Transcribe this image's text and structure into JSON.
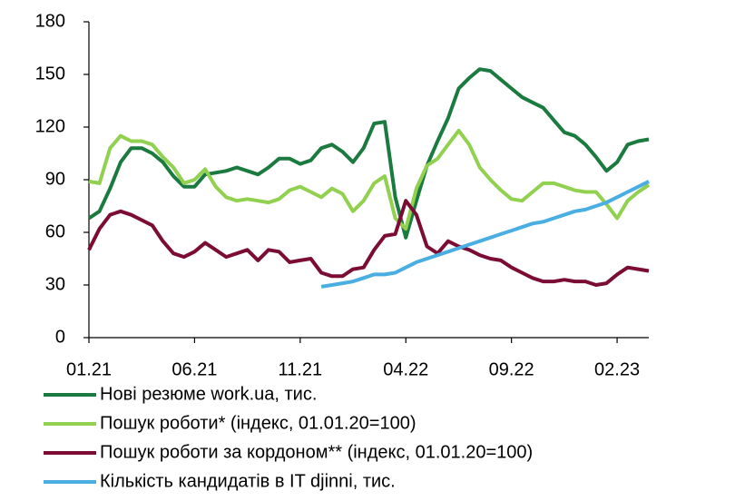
{
  "chart_data": {
    "type": "line",
    "categories": [
      "01.21",
      null,
      null,
      null,
      null,
      null,
      null,
      null,
      null,
      null,
      "06.21",
      null,
      null,
      null,
      null,
      null,
      null,
      null,
      null,
      null,
      "11.21",
      null,
      null,
      null,
      null,
      null,
      null,
      null,
      null,
      null,
      "04.22",
      null,
      null,
      null,
      null,
      null,
      null,
      null,
      null,
      null,
      "09.22",
      null,
      null,
      null,
      null,
      null,
      null,
      null,
      null,
      null,
      "02.23",
      null,
      null,
      null
    ],
    "series": [
      {
        "name": "Нові резюме work.ua, тис.",
        "color": "#1b7a3f",
        "values": [
          68,
          72,
          85,
          100,
          108,
          108,
          105,
          100,
          92,
          86,
          86,
          93,
          94,
          95,
          97,
          95,
          93,
          97,
          102,
          102,
          99,
          101,
          108,
          110,
          106,
          100,
          108,
          122,
          123,
          80,
          57,
          78,
          98,
          112,
          125,
          142,
          148,
          153,
          152,
          147,
          142,
          137,
          134,
          131,
          124,
          117,
          115,
          110,
          103,
          95,
          100,
          110,
          112,
          113
        ]
      },
      {
        "name": "Пошук роботи* (індекс, 01.01.20=100)",
        "color": "#92d050",
        "values": [
          89,
          88,
          108,
          115,
          112,
          112,
          110,
          103,
          97,
          88,
          90,
          96,
          86,
          80,
          78,
          79,
          78,
          77,
          79,
          84,
          86,
          83,
          80,
          85,
          82,
          72,
          78,
          88,
          92,
          68,
          62,
          85,
          98,
          102,
          110,
          118,
          110,
          97,
          90,
          84,
          79,
          78,
          83,
          88,
          88,
          86,
          84,
          83,
          83,
          76,
          68,
          78,
          83,
          87
        ]
      },
      {
        "name": "Пошук роботи за кордоном** (індекс, 01.01.20=100)",
        "color": "#7b0c34",
        "values": [
          50,
          62,
          70,
          72,
          70,
          67,
          64,
          55,
          48,
          46,
          49,
          54,
          50,
          46,
          48,
          50,
          44,
          50,
          49,
          43,
          44,
          45,
          37,
          35,
          35,
          39,
          40,
          50,
          58,
          59,
          78,
          70,
          52,
          48,
          55,
          52,
          50,
          47,
          45,
          44,
          40,
          37,
          34,
          32,
          32,
          33,
          32,
          32,
          30,
          31,
          36,
          40,
          39,
          38
        ]
      },
      {
        "name": "Кількість кандидатів в IT djinni, тис.",
        "color": "#4aaee2",
        "values": [
          null,
          null,
          null,
          null,
          null,
          null,
          null,
          null,
          null,
          null,
          null,
          null,
          null,
          null,
          null,
          null,
          null,
          null,
          null,
          null,
          null,
          null,
          29,
          30,
          31,
          32,
          34,
          36,
          36,
          37,
          40,
          43,
          45,
          47,
          49,
          51,
          53,
          55,
          57,
          59,
          61,
          63,
          65,
          66,
          68,
          70,
          72,
          73,
          75,
          77,
          80,
          83,
          86,
          89
        ]
      }
    ],
    "ylim": [
      0,
      180
    ],
    "yticks": [
      0,
      30,
      60,
      90,
      120,
      150,
      180
    ],
    "grid": false,
    "legend": "bottom"
  }
}
